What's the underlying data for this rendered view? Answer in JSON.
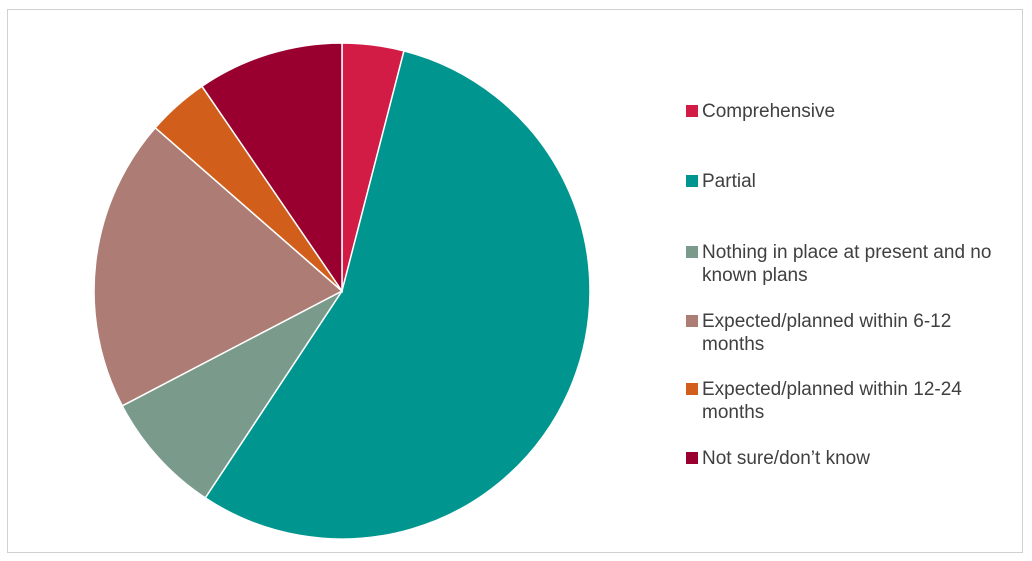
{
  "chart_data": {
    "type": "pie",
    "title": "",
    "legend_position": "right",
    "slices": [
      {
        "label": "Comprehensive",
        "value": 4,
        "color": "#D21B45"
      },
      {
        "label": "Partial",
        "value": 55,
        "color": "#00968F"
      },
      {
        "label": "Nothing in place at present and no known plans",
        "value": 8,
        "color": "#7A9A8C"
      },
      {
        "label": "Expected/planned within 6-12 months",
        "value": 19,
        "color": "#AD7D75"
      },
      {
        "label": "Expected/planned within 12-24 months",
        "value": 4,
        "color": "#D15F1B"
      },
      {
        "label": "Not sure/don’t know",
        "value": 9.5,
        "color": "#990030"
      }
    ]
  }
}
